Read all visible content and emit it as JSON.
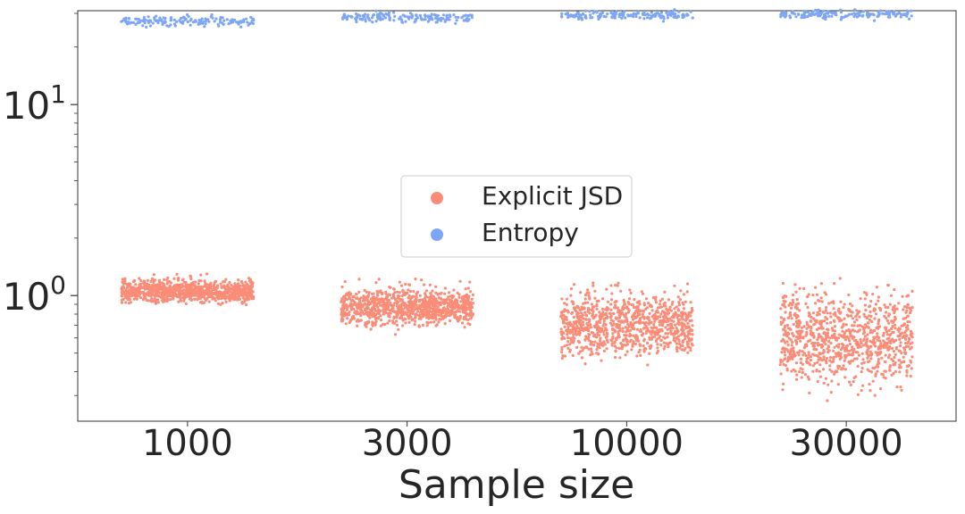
{
  "chart_data": {
    "type": "scatter",
    "subtype": "strip",
    "xlabel": "Sample size",
    "ylabel": "",
    "yscale": "log",
    "ylim": [
      0.22,
      31
    ],
    "grid": false,
    "legend_position": "center",
    "categories": [
      "1000",
      "3000",
      "10000",
      "30000"
    ],
    "y_ticks": [
      {
        "value": 10,
        "base": "10",
        "exp": "1"
      },
      {
        "value": 1,
        "base": "10",
        "exp": "0"
      }
    ],
    "series": [
      {
        "name": "Explicit JSD",
        "color": "#fa8c78",
        "groups": [
          {
            "category": "1000",
            "median": 1.05,
            "spread": 0.09,
            "high_outliers": [
              1.16,
              1.22,
              1.27
            ],
            "low_outliers": []
          },
          {
            "category": "3000",
            "median": 0.87,
            "spread": 0.15,
            "high_outliers": [
              1.02,
              1.12,
              1.2
            ],
            "low_outliers": []
          },
          {
            "category": "10000",
            "median": 0.7,
            "spread": 0.25,
            "high_outliers": [
              0.9,
              1.05,
              1.15
            ],
            "low_outliers": [
              0.55
            ]
          },
          {
            "category": "30000",
            "median": 0.6,
            "spread": 0.38,
            "high_outliers": [
              0.85,
              1.0,
              1.15
            ],
            "low_outliers": [
              0.4
            ]
          }
        ]
      },
      {
        "name": "Entropy",
        "color": "#7ea6f7",
        "groups": [
          {
            "category": "1000",
            "median": 27.3,
            "spread": 0.04,
            "high_outliers": [],
            "low_outliers": [
              25.8
            ]
          },
          {
            "category": "3000",
            "median": 28.6,
            "spread": 0.04,
            "high_outliers": [],
            "low_outliers": [
              26.9
            ]
          },
          {
            "category": "10000",
            "median": 29.4,
            "spread": 0.035,
            "high_outliers": [],
            "low_outliers": [
              27.3
            ]
          },
          {
            "category": "30000",
            "median": 29.7,
            "spread": 0.035,
            "high_outliers": [],
            "low_outliers": [
              27.5
            ]
          }
        ]
      }
    ]
  }
}
